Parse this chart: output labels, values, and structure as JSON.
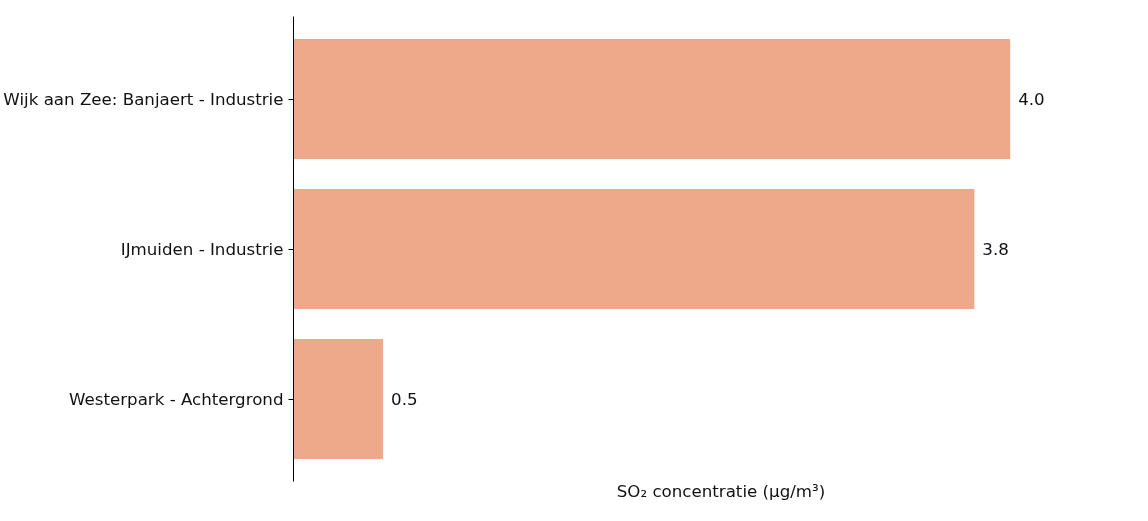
{
  "chart_data": {
    "type": "bar",
    "orientation": "horizontal",
    "categories": [
      "Wijk aan Zee: Banjaert - Industrie",
      "IJmuiden - Industrie",
      "Westerpark - Achtergrond"
    ],
    "values": [
      4.0,
      3.8,
      0.5
    ],
    "value_labels": [
      "4.0",
      "3.8",
      "0.5"
    ],
    "color": "#eea88a",
    "xlabel": "SO₂ concentratie (µg/m³)"
  }
}
